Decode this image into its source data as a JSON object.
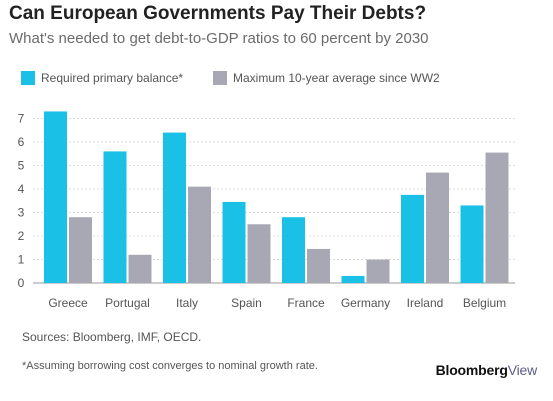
{
  "header": {
    "title": "Can European Governments Pay Their Debts?",
    "subtitle": "What's needed to get debt-to-GDP ratios to 60 percent by 2030"
  },
  "footer": {
    "source": "Sources: Bloomberg, IMF, OECD.",
    "footnote": "*Assuming borrowing cost converges to nominal growth rate.",
    "brand_main": "Bloomberg",
    "brand_accent": "View"
  },
  "chart_data": {
    "type": "bar",
    "title": "Can European Governments Pay Their Debts?",
    "subtitle": "What's needed to get debt-to-GDP ratios to 60 percent by 2030",
    "xlabel": "",
    "ylabel": "",
    "ylim": [
      0,
      7.6
    ],
    "yticks": [
      0,
      1,
      2,
      3,
      4,
      5,
      6,
      7
    ],
    "grid": true,
    "legend_position": "top-left",
    "categories": [
      "Greece",
      "Portugal",
      "Italy",
      "Spain",
      "France",
      "Germany",
      "Ireland",
      "Belgium"
    ],
    "series": [
      {
        "name": "Required primary balance*",
        "color": "#1ac0e6",
        "values": [
          7.3,
          5.6,
          6.4,
          3.45,
          2.8,
          0.3,
          3.75,
          3.3
        ]
      },
      {
        "name": "Maximum 10-year average since WW2",
        "color": "#a8a8b4",
        "values": [
          2.8,
          1.2,
          4.1,
          2.5,
          1.45,
          1.0,
          4.7,
          5.55
        ]
      }
    ]
  }
}
